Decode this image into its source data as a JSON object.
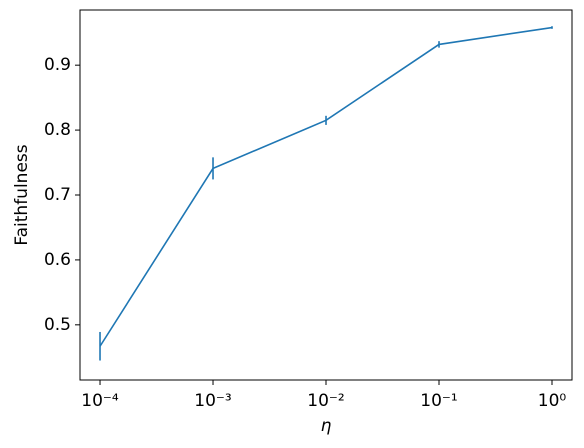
{
  "chart_data": {
    "type": "line",
    "x_label": "η",
    "y_label": "Faithfulness",
    "xscale": "log",
    "x": [
      0.0001,
      0.001,
      0.01,
      0.1,
      1
    ],
    "series": [
      {
        "color": "#1f77b4",
        "values": [
          0.467,
          0.741,
          0.815,
          0.932,
          0.958
        ],
        "errors": [
          0.022,
          0.017,
          0.007,
          0.005,
          0.002
        ]
      }
    ],
    "xlim": [
      6.65e-05,
      1.503
    ],
    "ylim": [
      0.415,
      0.985
    ],
    "xticks": [
      {
        "value": 0.0001,
        "label": "10⁻⁴"
      },
      {
        "value": 0.001,
        "label": "10⁻³"
      },
      {
        "value": 0.01,
        "label": "10⁻²"
      },
      {
        "value": 0.1,
        "label": "10⁻¹"
      },
      {
        "value": 1,
        "label": "10⁰"
      }
    ],
    "yticks": [
      0.5,
      0.6,
      0.7,
      0.8,
      0.9
    ]
  }
}
